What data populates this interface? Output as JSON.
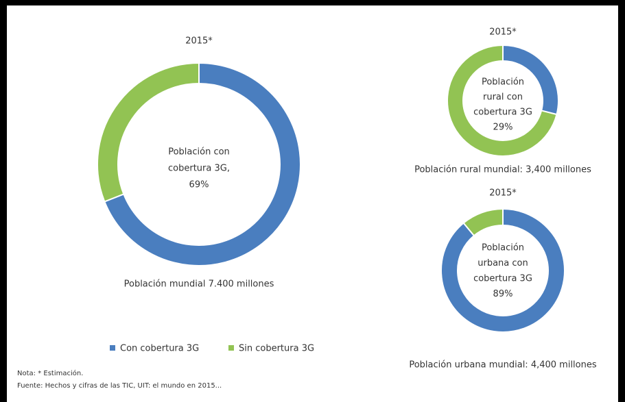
{
  "chart_data": [
    {
      "type": "donut",
      "title": "2015*",
      "categories": [
        "Con cobertura 3G",
        "Sin cobertura 3G"
      ],
      "values": [
        69,
        31
      ],
      "value_labels": [
        "69%",
        null
      ],
      "colors": [
        "#4a7ebf",
        "#92c353"
      ],
      "center_label": [
        "Población con",
        "cobertura 3G,"
      ],
      "caption": "Población mundial 7.400 millones"
    },
    {
      "type": "donut",
      "title": "2015*",
      "categories": [
        "Con cobertura 3G",
        "Sin cobertura 3G"
      ],
      "values": [
        29,
        71
      ],
      "value_labels": [
        "29%",
        null
      ],
      "colors": [
        "#4a7ebf",
        "#92c353"
      ],
      "center_label": [
        "Población",
        "rural con",
        "cobertura 3G"
      ],
      "caption": "Población rural mundial: 3,400 millones"
    },
    {
      "type": "donut",
      "title": "2015*",
      "categories": [
        "Con cobertura 3G",
        "Sin cobertura 3G"
      ],
      "values": [
        89,
        11
      ],
      "value_labels": [
        "89%",
        null
      ],
      "colors": [
        "#4a7ebf",
        "#92c353"
      ],
      "center_label": [
        "Población",
        "urbana con",
        "cobertura 3G"
      ],
      "caption": "Población urbana mundial: 4,400 millones"
    }
  ],
  "notes": [
    "Nota: * Estimación.",
    "Fuente: Hechos y cifras de las TIC, UIT: el mundo en 2015..."
  ]
}
